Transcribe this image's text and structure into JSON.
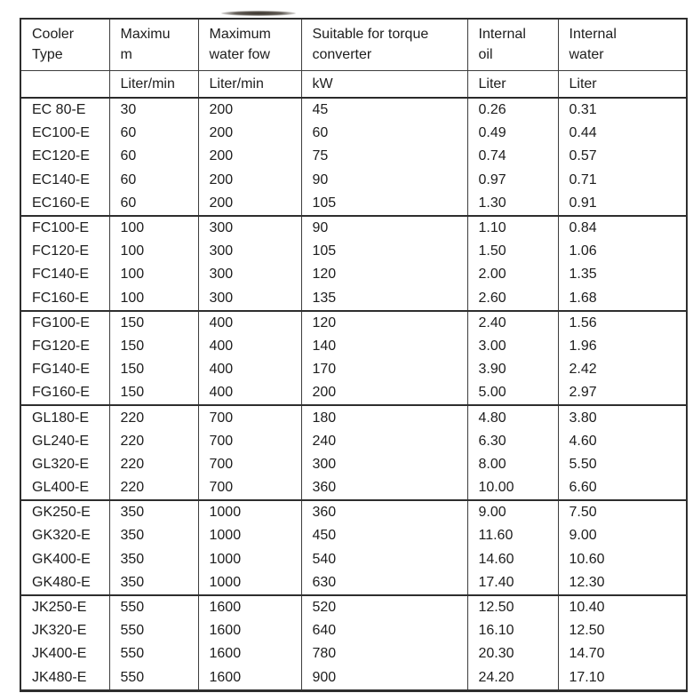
{
  "artifact": {
    "description": "dark scan smudge above table"
  },
  "colors": {
    "background": "#ffffff",
    "text": "#1d1d1d",
    "border": "#3d3d3d",
    "border_heavy": "#2a2a2a"
  },
  "table": {
    "columns": [
      {
        "title_lines": [
          "Cooler",
          "Type"
        ],
        "unit": ""
      },
      {
        "title_lines": [
          "Maximu",
          "m"
        ],
        "unit": "Liter/min"
      },
      {
        "title_lines": [
          "Maximum",
          "water fow"
        ],
        "unit": "Liter/min"
      },
      {
        "title_lines": [
          "Suitable for torque",
          "converter"
        ],
        "unit": "kW"
      },
      {
        "title_lines": [
          "Internal",
          "oil"
        ],
        "unit": "Liter"
      },
      {
        "title_lines": [
          "Internal",
          "water"
        ],
        "unit": "Liter"
      }
    ],
    "groups": [
      {
        "series": "EC",
        "rows": [
          [
            "EC 80-E",
            "30",
            "200",
            "45",
            "0.26",
            "0.31"
          ],
          [
            "EC100-E",
            "60",
            "200",
            "60",
            "0.49",
            "0.44"
          ],
          [
            "EC120-E",
            "60",
            "200",
            "75",
            "0.74",
            "0.57"
          ],
          [
            "EC140-E",
            "60",
            "200",
            "90",
            "0.97",
            "0.71"
          ],
          [
            "EC160-E",
            "60",
            "200",
            "105",
            "1.30",
            "0.91"
          ]
        ]
      },
      {
        "series": "FC",
        "rows": [
          [
            "FC100-E",
            "100",
            "300",
            "90",
            "1.10",
            "0.84"
          ],
          [
            "FC120-E",
            "100",
            "300",
            "105",
            "1.50",
            "1.06"
          ],
          [
            "FC140-E",
            "100",
            "300",
            "120",
            "2.00",
            "1.35"
          ],
          [
            "FC160-E",
            "100",
            "300",
            "135",
            "2.60",
            "1.68"
          ]
        ]
      },
      {
        "series": "FG",
        "rows": [
          [
            "FG100-E",
            "150",
            "400",
            "120",
            "2.40",
            "1.56"
          ],
          [
            "FG120-E",
            "150",
            "400",
            "140",
            "3.00",
            "1.96"
          ],
          [
            "FG140-E",
            "150",
            "400",
            "170",
            "3.90",
            "2.42"
          ],
          [
            "FG160-E",
            "150",
            "400",
            "200",
            "5.00",
            "2.97"
          ]
        ]
      },
      {
        "series": "GL",
        "rows": [
          [
            "GL180-E",
            "220",
            "700",
            "180",
            "4.80",
            "3.80"
          ],
          [
            "GL240-E",
            "220",
            "700",
            "240",
            "6.30",
            "4.60"
          ],
          [
            "GL320-E",
            "220",
            "700",
            "300",
            "8.00",
            "5.50"
          ],
          [
            "GL400-E",
            "220",
            "700",
            "360",
            "10.00",
            "6.60"
          ]
        ]
      },
      {
        "series": "GK",
        "rows": [
          [
            "GK250-E",
            "350",
            "1000",
            "360",
            "9.00",
            "7.50"
          ],
          [
            "GK320-E",
            "350",
            "1000",
            "450",
            "11.60",
            "9.00"
          ],
          [
            "GK400-E",
            "350",
            "1000",
            "540",
            "14.60",
            "10.60"
          ],
          [
            "GK480-E",
            "350",
            "1000",
            "630",
            "17.40",
            "12.30"
          ]
        ]
      },
      {
        "series": "JK",
        "rows": [
          [
            "JK250-E",
            "550",
            "1600",
            "520",
            "12.50",
            "10.40"
          ],
          [
            "JK320-E",
            "550",
            "1600",
            "640",
            "16.10",
            "12.50"
          ],
          [
            "JK400-E",
            "550",
            "1600",
            "780",
            "20.30",
            "14.70"
          ],
          [
            "JK480-E",
            "550",
            "1600",
            "900",
            "24.20",
            "17.10"
          ]
        ]
      }
    ]
  }
}
